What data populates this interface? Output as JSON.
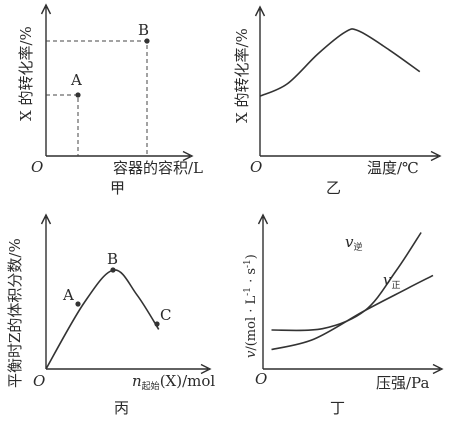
{
  "chart_data": [
    {
      "panel": "甲",
      "type": "scatter",
      "caption": "甲",
      "xlabel": "容器的容积/L",
      "ylabel": "X 的转化率/%",
      "origin": "O",
      "points": [
        {
          "label": "A",
          "x": 0.22,
          "y": 0.55
        },
        {
          "label": "B",
          "x": 0.88,
          "y": 0.84
        }
      ]
    },
    {
      "panel": "乙",
      "type": "line",
      "caption": "乙",
      "xlabel": "温度/℃",
      "ylabel": "X 的转化率/%",
      "origin": "O",
      "series": [
        {
          "x": [
            0,
            0.16,
            0.34,
            0.5,
            0.58,
            0.76,
            0.94
          ],
          "y": [
            0.44,
            0.53,
            0.75,
            0.91,
            0.92,
            0.78,
            0.62
          ]
        }
      ]
    },
    {
      "panel": "丙",
      "type": "line",
      "caption": "丙",
      "xlabel": "n起始(X)/mol",
      "xlabel_parts": {
        "italic": "n",
        "sub": "起始",
        "rest": "(X)/mol"
      },
      "ylabel": "平衡时Z的体积分数/%",
      "origin": "O",
      "series": [
        {
          "x": [
            0,
            0.33,
            0.59,
            0.79,
            0.98
          ],
          "y": [
            0,
            0.4,
            0.6,
            0.45,
            0.24
          ]
        }
      ],
      "points": [
        {
          "label": "A",
          "x": 0.33,
          "y": 0.4
        },
        {
          "label": "B",
          "x": 0.59,
          "y": 0.6
        },
        {
          "label": "C",
          "x": 0.95,
          "y": 0.24
        }
      ]
    },
    {
      "panel": "丁",
      "type": "line",
      "caption": "丁",
      "xlabel": "压强/Pa",
      "ylabel": "v/(mol·L⁻¹·s⁻¹)",
      "ylabel_parts": {
        "italic": "v",
        "rest": "/(mol · L",
        "sup1": "-1",
        "mid": " · s",
        "sup2": "-1",
        "end": ")"
      },
      "origin": "O",
      "series": [
        {
          "name": "v逆",
          "name_parts": {
            "italic": "v",
            "sub": "逆"
          },
          "x": [
            0.05,
            0.35,
            0.6,
            0.78,
            0.93
          ],
          "y": [
            0.3,
            0.31,
            0.45,
            0.75,
            1.05
          ]
        },
        {
          "name": "v正",
          "name_parts": {
            "italic": "v",
            "sub": "正"
          },
          "x": [
            0.05,
            0.3,
            0.6,
            0.85,
            1.0
          ],
          "y": [
            0.15,
            0.23,
            0.45,
            0.62,
            0.72
          ]
        }
      ]
    }
  ]
}
